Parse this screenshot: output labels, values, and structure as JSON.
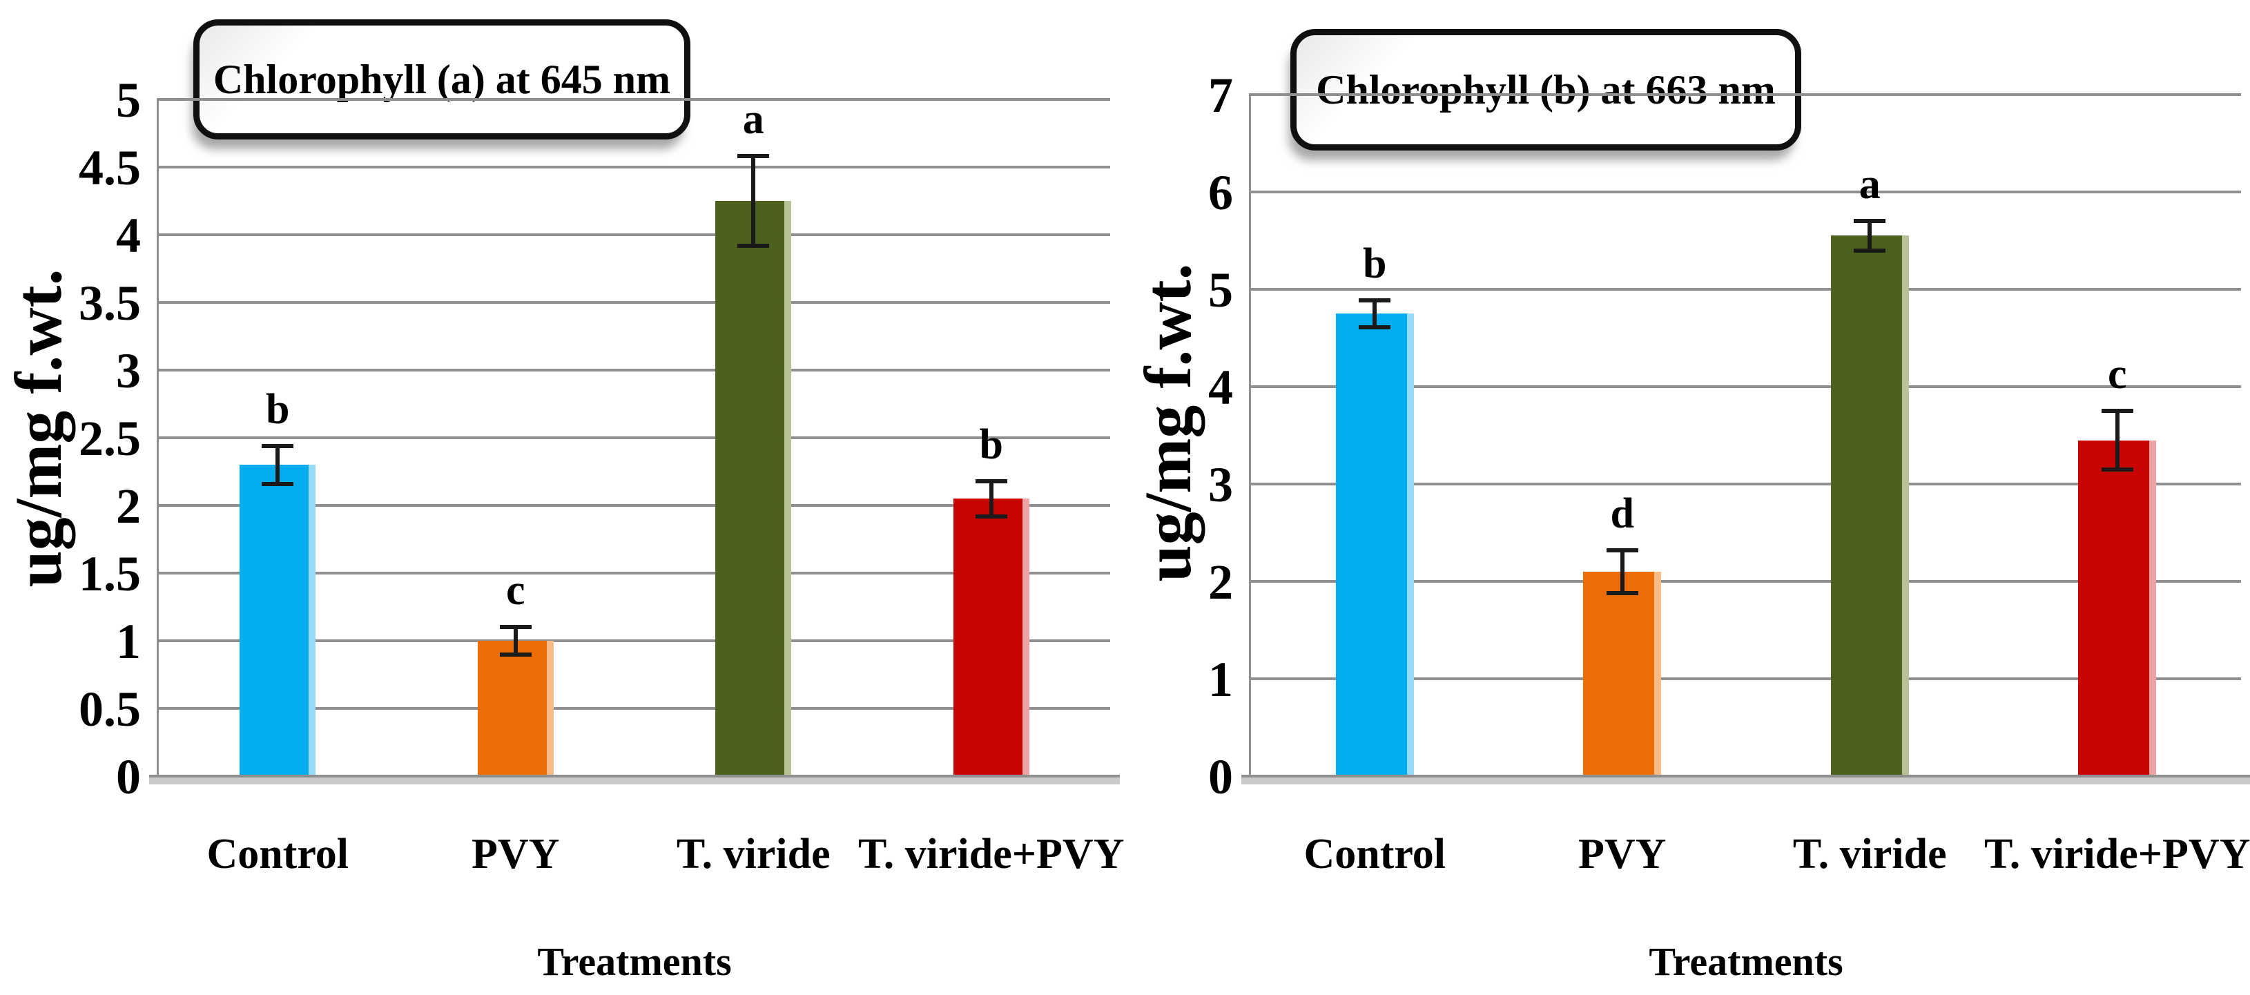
{
  "figure": {
    "background": "#ffffff",
    "panels": 2
  },
  "chart_data": [
    {
      "type": "bar",
      "title": "Chlorophyll (a) at 645 nm",
      "xlabel": "Treatments",
      "ylabel": "ug/mg f.wt.",
      "categories": [
        "Control",
        "PVY",
        "T. viride",
        "T. viride+PVY"
      ],
      "values": [
        2.3,
        1.0,
        4.25,
        2.05
      ],
      "errors": [
        0.14,
        0.1,
        0.33,
        0.13
      ],
      "letters": [
        "b",
        "c",
        "a",
        "b"
      ],
      "ylim": [
        0,
        5
      ],
      "ytick_step": 0.5,
      "yticks": [
        "0",
        "0.5",
        "1",
        "1.5",
        "2",
        "2.5",
        "3",
        "3.5",
        "4",
        "4.5",
        "5"
      ],
      "grid": true,
      "legend": "none",
      "bar_colors": [
        "#00AEEF",
        "#EC6D05",
        "#4C611D",
        "#C80404"
      ],
      "bar_edge_highlights": [
        "#97DBF8",
        "#F7BC85",
        "#B7C295",
        "#EFA3A3"
      ]
    },
    {
      "type": "bar",
      "title": "Chlorophyll (b) at 663 nm",
      "xlabel": "Treatments",
      "ylabel": "ug/mg f.wt.",
      "categories": [
        "Control",
        "PVY",
        "T. viride",
        "T. viride+PVY"
      ],
      "values": [
        4.75,
        2.1,
        5.55,
        3.45
      ],
      "errors": [
        0.14,
        0.22,
        0.15,
        0.3
      ],
      "letters": [
        "b",
        "d",
        "a",
        "c"
      ],
      "ylim": [
        0,
        7
      ],
      "ytick_step": 1,
      "yticks": [
        "0",
        "1",
        "2",
        "3",
        "4",
        "5",
        "6",
        "7"
      ],
      "grid": true,
      "legend": "none",
      "bar_colors": [
        "#00AEEF",
        "#EC6D05",
        "#4C611D",
        "#C80404"
      ],
      "bar_edge_highlights": [
        "#97DBF8",
        "#F7BC85",
        "#B7C295",
        "#EFA3A3"
      ]
    }
  ],
  "colors": {
    "gridline": "#8f8f8f",
    "axis_band_top": "#8f8f8f",
    "axis_band": "#cacaca",
    "error_bar": "#1a1a1a",
    "text": "#000000",
    "title_border": "#101010"
  }
}
